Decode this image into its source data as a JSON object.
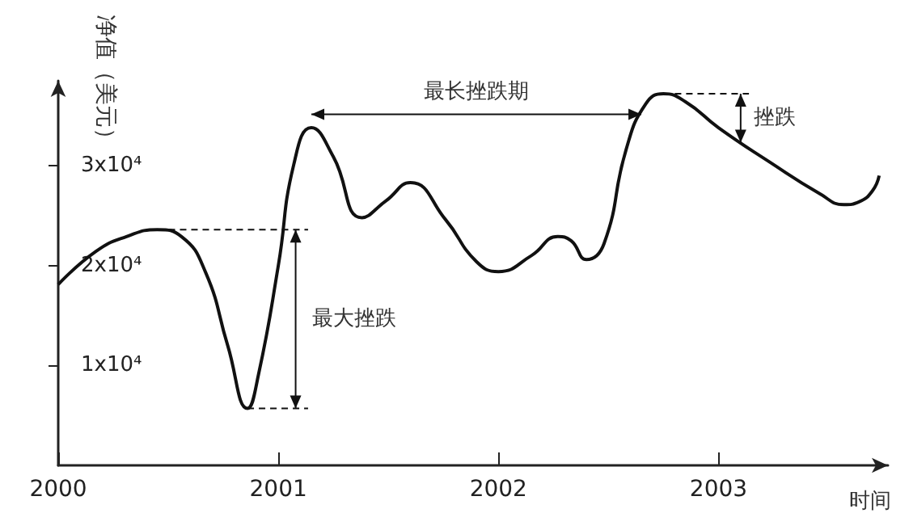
{
  "chart_data": {
    "type": "line",
    "xlabel": "时间",
    "ylabel": "净值（美元）",
    "color": "#111111",
    "marker": "none",
    "x": [
      2000,
      2000.17,
      2000.31,
      2000.45,
      2000.56,
      2000.67,
      2000.77,
      2000.86,
      2000.91,
      2001.0,
      2001.07,
      2001.15,
      2001.25,
      2001.38,
      2001.49,
      2001.6,
      2001.76,
      2001.9,
      2002.0,
      2002.15,
      2002.27,
      2002.33,
      2002.4,
      2002.48,
      2002.58,
      2002.67,
      2002.75,
      2002.85,
      2003.0,
      2003.23,
      2003.46,
      2003.57,
      2003.64,
      2003.7,
      2003.73
    ],
    "values": [
      18100,
      21400,
      22900,
      23600,
      22900,
      19300,
      12000,
      5700,
      9100,
      20000,
      30100,
      33800,
      30900,
      24800,
      26500,
      28300,
      24600,
      20400,
      19400,
      21000,
      22900,
      22500,
      20600,
      22200,
      31600,
      36200,
      37200,
      36400,
      33800,
      30400,
      27200,
      26100,
      26400,
      27500,
      29000
    ],
    "xlim": [
      2000,
      2003.77
    ],
    "ylim": [
      0,
      38500
    ],
    "xticks": [
      2000,
      2001,
      2002,
      2003
    ],
    "yticks": [
      {
        "value": 10000,
        "label": "1x10⁴"
      },
      {
        "value": 20000,
        "label": "2x10⁴"
      },
      {
        "value": 30000,
        "label": "3x10⁴"
      }
    ],
    "annotations": [
      "最长挫跌期",
      {
        "text": "挫跌",
        "x": 2002.75,
        "y": 37200
      },
      "最大挫跌"
    ]
  }
}
